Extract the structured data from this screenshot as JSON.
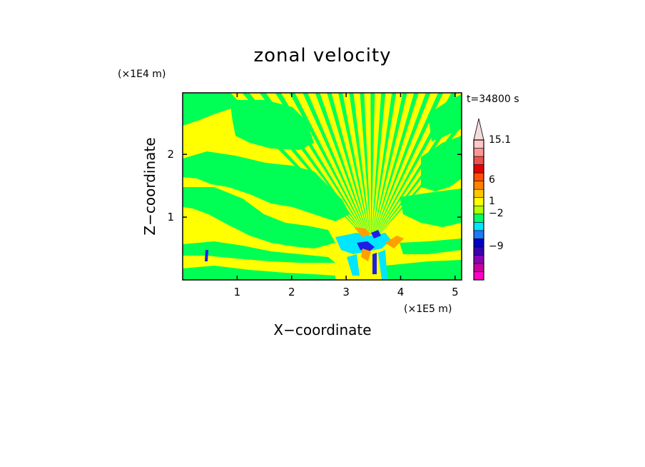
{
  "chart_data": {
    "type": "heatmap",
    "title": "zonal velocity",
    "time_label": "t=34800 s",
    "xlabel": "X−coordinate",
    "ylabel": "Z−coordinate",
    "x_scale_label": "(×1E5 m)",
    "y_scale_label": "(×1E4 m)",
    "xlim": [
      0,
      5.12
    ],
    "ylim": [
      0,
      2.98
    ],
    "x_ticks": [
      {
        "value": 1,
        "label": "1"
      },
      {
        "value": 2,
        "label": "2"
      },
      {
        "value": 3,
        "label": "3"
      },
      {
        "value": 4,
        "label": "4"
      },
      {
        "value": 5,
        "label": "5"
      }
    ],
    "y_ticks": [
      {
        "value": 1,
        "label": "1"
      },
      {
        "value": 2,
        "label": "2"
      }
    ],
    "colorbar": {
      "labels": [
        "15.1",
        "6",
        "1",
        "−2",
        "−9"
      ],
      "bins": [
        {
          "color": "#ff00c8"
        },
        {
          "color": "#c800a0"
        },
        {
          "color": "#8c00b4"
        },
        {
          "color": "#3c00b4"
        },
        {
          "color": "#0000c8"
        },
        {
          "color": "#1e78ff"
        },
        {
          "color": "#00e6ff"
        },
        {
          "color": "#00ff64"
        },
        {
          "color": "#b4ff00"
        },
        {
          "color": "#ffff00"
        },
        {
          "color": "#ffc800"
        },
        {
          "color": "#ff8200"
        },
        {
          "color": "#ff5000"
        },
        {
          "color": "#e60000"
        },
        {
          "color": "#f0504b"
        },
        {
          "color": "#ff9696"
        },
        {
          "color": "#ffc8c8"
        }
      ],
      "extend_max_color": "#f5dcdc"
    },
    "field_colors": {
      "positive_small": "#ffff00",
      "negative_small": "#00ff55",
      "negative_medium": "#00e6ff",
      "negative_large": "#1e1ee6",
      "positive_medium": "#ffa000"
    }
  }
}
